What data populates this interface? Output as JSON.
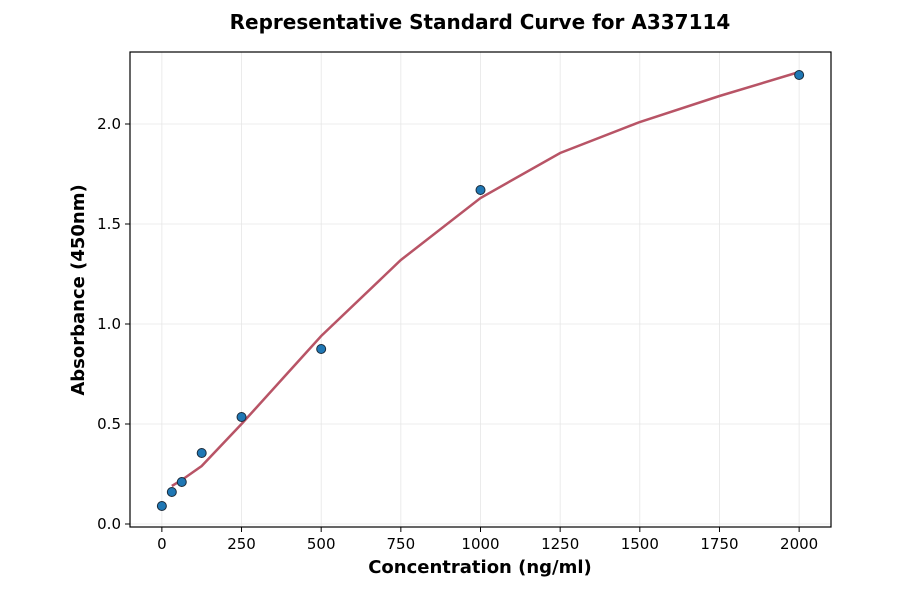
{
  "chart_data": {
    "type": "scatter",
    "title": "Representative Standard Curve for A337114",
    "x_label": "Concentration (ng/ml)",
    "y_label": "Absorbance (450nm)",
    "xlim": [
      -100,
      2100
    ],
    "ylim": [
      -0.015,
      2.36
    ],
    "xticks": [
      0,
      250,
      500,
      750,
      1000,
      1250,
      1500,
      1750,
      2000
    ],
    "yticks": [
      {
        "value": 0,
        "label": "0.0"
      },
      0.5,
      {
        "value": 1,
        "label": "1.0"
      },
      1.5,
      {
        "value": 2,
        "label": "2.0"
      }
    ],
    "grid": true,
    "series": [
      {
        "kind": "points",
        "color": "#1f77b4",
        "x": [
          0,
          31.25,
          62.5,
          125,
          250,
          500,
          1000,
          2000
        ],
        "values": [
          0.09,
          0.16,
          0.21,
          0.355,
          0.535,
          0.875,
          1.67,
          2.245
        ]
      },
      {
        "kind": "line",
        "color": "#b85466",
        "x": [
          31.25,
          62.5,
          125,
          250,
          375,
          500,
          750,
          1000,
          1250,
          1500,
          1750,
          2000
        ],
        "values": [
          0.19,
          0.22,
          0.29,
          0.5,
          0.72,
          0.94,
          1.32,
          1.63,
          1.855,
          2.01,
          2.14,
          2.26
        ]
      }
    ]
  }
}
